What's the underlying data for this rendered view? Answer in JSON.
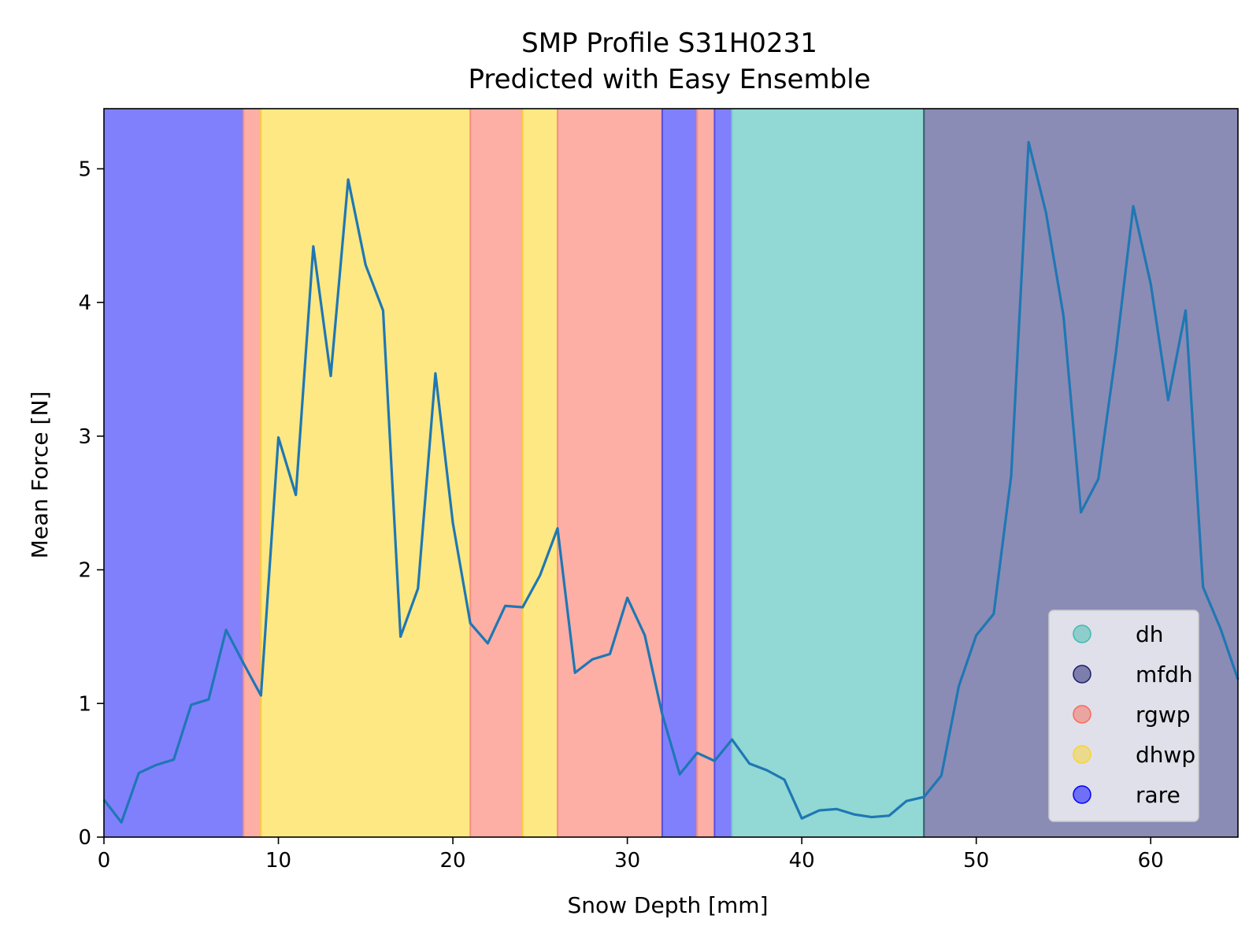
{
  "chart_data": {
    "type": "line",
    "title": "SMP Profile S31H0231",
    "subtitle": "Predicted with Easy Ensemble",
    "xlabel": "Snow Depth [mm]",
    "ylabel": "Mean Force [N]",
    "xlim": [
      0,
      65
    ],
    "ylim": [
      0,
      5.45
    ],
    "xticks": [
      0,
      10,
      20,
      30,
      40,
      50,
      60
    ],
    "yticks": [
      0,
      1,
      2,
      3,
      4,
      5
    ],
    "grid": false,
    "legend_position": "bottom-right",
    "line_color": "#1f77b4",
    "series": [
      {
        "x": [
          0,
          1,
          2,
          3,
          4,
          5,
          6,
          7,
          8,
          9,
          10,
          11,
          12,
          13,
          14,
          15,
          16,
          17,
          18,
          19,
          20,
          21,
          22,
          23,
          24,
          25,
          26,
          27,
          28,
          29,
          30,
          31,
          32,
          33,
          34,
          35,
          36,
          37,
          38,
          39,
          40,
          41,
          42,
          43,
          44,
          45,
          46,
          47,
          48,
          49,
          50,
          51,
          52,
          53,
          54,
          55,
          56,
          57,
          58,
          59,
          60,
          61,
          62,
          63,
          64,
          65
        ],
        "y": [
          0.28,
          0.11,
          0.48,
          0.54,
          0.58,
          0.99,
          1.03,
          1.55,
          1.3,
          1.06,
          2.99,
          2.56,
          4.42,
          3.45,
          4.92,
          4.28,
          3.94,
          1.5,
          1.86,
          3.47,
          2.35,
          1.6,
          1.45,
          1.73,
          1.72,
          1.96,
          2.31,
          1.23,
          1.33,
          1.37,
          1.79,
          1.51,
          0.92,
          0.47,
          0.63,
          0.57,
          0.73,
          0.55,
          0.5,
          0.43,
          0.14,
          0.2,
          0.21,
          0.17,
          0.15,
          0.16,
          0.27,
          0.3,
          0.46,
          1.13,
          1.51,
          1.67,
          2.7,
          5.2,
          4.67,
          3.9,
          2.43,
          2.68,
          3.62,
          4.72,
          4.14,
          3.27,
          3.94,
          1.87,
          1.56,
          1.18
        ]
      }
    ],
    "bands": [
      {
        "start": 0,
        "end": 8,
        "label": "rare"
      },
      {
        "start": 8,
        "end": 9,
        "label": "rgwp"
      },
      {
        "start": 9,
        "end": 21,
        "label": "dhwp"
      },
      {
        "start": 21,
        "end": 24,
        "label": "rgwp"
      },
      {
        "start": 24,
        "end": 26,
        "label": "dhwp"
      },
      {
        "start": 26,
        "end": 32,
        "label": "rgwp"
      },
      {
        "start": 32,
        "end": 34,
        "label": "rare"
      },
      {
        "start": 34,
        "end": 35,
        "label": "rgwp"
      },
      {
        "start": 35,
        "end": 36,
        "label": "rare"
      },
      {
        "start": 36,
        "end": 47,
        "label": "dh"
      },
      {
        "start": 47,
        "end": 65,
        "label": "mfdh"
      }
    ],
    "legend": [
      {
        "label": "dh",
        "color": "#3fb9b0"
      },
      {
        "label": "mfdh",
        "color": "#1b1b6b"
      },
      {
        "label": "rgwp",
        "color": "#f76a58"
      },
      {
        "label": "dhwp",
        "color": "#fad32e"
      },
      {
        "label": "rare",
        "color": "#0000ff"
      }
    ],
    "band_colors": {
      "rare": "#8080fd",
      "rgwp": "#fdaea5",
      "dhwp": "#fde883",
      "dh": "#92d8d4",
      "mfdh": "#8a8cb5"
    }
  }
}
